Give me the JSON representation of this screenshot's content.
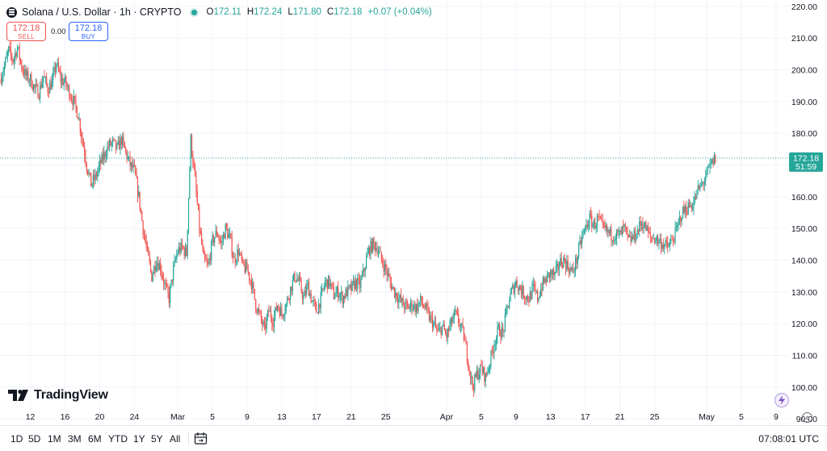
{
  "header": {
    "symbol_title": "Solana / U.S. Dollar · 1h · CRYPTO",
    "ohlc": [
      {
        "key": "O",
        "value": "172.11"
      },
      {
        "key": "H",
        "value": "172.24"
      },
      {
        "key": "L",
        "value": "171.80"
      },
      {
        "key": "C",
        "value": "172.18"
      }
    ],
    "change": "+0.07 (+0.04%)"
  },
  "trade": {
    "sell_price": "172.18",
    "sell_label": "SELL",
    "spread": "0.00",
    "buy_price": "172.18",
    "buy_label": "BUY"
  },
  "watermark": "TradingView",
  "last_price_label": {
    "price": "172.18",
    "countdown": "51:59"
  },
  "toolbar": {
    "ranges": [
      "1D",
      "5D",
      "1M",
      "3M",
      "6M",
      "YTD",
      "1Y",
      "5Y",
      "All"
    ],
    "time": "07:08:01 UTC"
  },
  "colors": {
    "up": "#26a69a",
    "down": "#ef5350",
    "text": "#131722",
    "grid": "#f0f3fa",
    "accent": "#2962ff"
  },
  "icons": [
    "solana-logo-icon",
    "market-open-dot-icon",
    "calendar-range-icon",
    "flash-icon",
    "settings-gear-icon",
    "tradingview-logo-icon"
  ],
  "chart_data": {
    "type": "line",
    "representation": "hourly candlestick series, SOL/USD",
    "y_ticks": [
      "220.00",
      "210.00",
      "200.00",
      "190.00",
      "180.00",
      "170.00",
      "160.00",
      "150.00",
      "140.00",
      "130.00",
      "120.00",
      "110.00",
      "100.00",
      "90.00"
    ],
    "ylim": [
      88,
      222
    ],
    "x_ticks": [
      "12",
      "16",
      "20",
      "24",
      "Mar",
      "5",
      "9",
      "13",
      "17",
      "21",
      "25",
      "Apr",
      "5",
      "9",
      "13",
      "17",
      "21",
      "25",
      "May",
      "5",
      "9"
    ],
    "x_tick_positions": [
      0,
      4,
      8,
      12,
      17,
      21,
      25,
      29,
      33,
      37,
      41,
      48,
      52,
      56,
      60,
      64,
      68,
      72,
      78,
      82,
      86
    ],
    "xlim": [
      -3.5,
      87.5
    ],
    "x_unit": "days after Feb 12",
    "price_path": [
      [
        -3.5,
        197
      ],
      [
        -3,
        201
      ],
      [
        -2.5,
        206
      ],
      [
        -2,
        203
      ],
      [
        -1.5,
        207
      ],
      [
        -1,
        201
      ],
      [
        -0.5,
        198
      ],
      [
        0,
        197
      ],
      [
        0.5,
        194
      ],
      [
        1,
        193
      ],
      [
        1.5,
        198
      ],
      [
        2,
        194
      ],
      [
        2.5,
        196
      ],
      [
        3,
        202
      ],
      [
        3.5,
        197
      ],
      [
        4,
        196
      ],
      [
        4.5,
        193
      ],
      [
        5,
        190
      ],
      [
        5.5,
        186
      ],
      [
        6,
        178
      ],
      [
        6.5,
        170
      ],
      [
        7,
        164
      ],
      [
        7.5,
        166
      ],
      [
        8,
        170
      ],
      [
        8.5,
        173
      ],
      [
        9,
        176
      ],
      [
        9.5,
        177
      ],
      [
        10,
        175
      ],
      [
        10.5,
        178
      ],
      [
        11,
        174
      ],
      [
        11.5,
        170
      ],
      [
        12,
        168
      ],
      [
        12.5,
        160
      ],
      [
        13,
        150
      ],
      [
        13.5,
        142
      ],
      [
        14,
        135
      ],
      [
        14.5,
        140
      ],
      [
        15,
        138
      ],
      [
        15.5,
        132
      ],
      [
        16,
        128
      ],
      [
        16.5,
        137
      ],
      [
        17,
        143
      ],
      [
        17.5,
        144
      ],
      [
        18,
        142
      ],
      [
        18.5,
        178
      ],
      [
        19,
        165
      ],
      [
        19.5,
        150
      ],
      [
        20,
        140
      ],
      [
        20.5,
        138
      ],
      [
        21,
        146
      ],
      [
        21.5,
        149
      ],
      [
        22,
        145
      ],
      [
        22.5,
        150
      ],
      [
        23,
        147
      ],
      [
        23.5,
        140
      ],
      [
        24,
        143
      ],
      [
        24.5,
        138
      ],
      [
        25,
        137
      ],
      [
        25.5,
        133
      ],
      [
        26,
        126
      ],
      [
        26.5,
        122
      ],
      [
        27,
        118
      ],
      [
        27.5,
        124
      ],
      [
        28,
        121
      ],
      [
        28.5,
        126
      ],
      [
        29,
        123
      ],
      [
        29.5,
        126
      ],
      [
        30,
        131
      ],
      [
        30.5,
        135
      ],
      [
        31,
        133
      ],
      [
        31.5,
        128
      ],
      [
        32,
        132
      ],
      [
        32.5,
        127
      ],
      [
        33,
        124
      ],
      [
        33.5,
        128
      ],
      [
        34,
        133
      ],
      [
        34.5,
        133
      ],
      [
        35,
        129
      ],
      [
        35.5,
        130
      ],
      [
        36,
        128
      ],
      [
        36.5,
        130
      ],
      [
        37,
        131
      ],
      [
        37.5,
        133
      ],
      [
        38,
        132
      ],
      [
        38.5,
        137
      ],
      [
        39,
        143
      ],
      [
        39.5,
        145
      ],
      [
        40,
        144
      ],
      [
        40.5,
        140
      ],
      [
        41,
        137
      ],
      [
        41.5,
        133
      ],
      [
        42,
        130
      ],
      [
        42.5,
        128
      ],
      [
        43,
        126
      ],
      [
        43.5,
        125
      ],
      [
        44,
        126
      ],
      [
        44.5,
        125
      ],
      [
        45,
        127
      ],
      [
        45.5,
        125
      ],
      [
        46,
        122
      ],
      [
        46.5,
        120
      ],
      [
        47,
        117
      ],
      [
        47.5,
        119
      ],
      [
        48,
        116
      ],
      [
        48.5,
        120
      ],
      [
        49,
        123
      ],
      [
        49.5,
        120
      ],
      [
        50,
        116
      ],
      [
        50.5,
        108
      ],
      [
        51,
        100
      ],
      [
        51.5,
        104
      ],
      [
        52,
        106
      ],
      [
        52.5,
        103
      ],
      [
        53,
        108
      ],
      [
        53.5,
        114
      ],
      [
        54,
        118
      ],
      [
        54.5,
        117
      ],
      [
        55,
        125
      ],
      [
        55.5,
        130
      ],
      [
        56,
        133
      ],
      [
        56.5,
        131
      ],
      [
        57,
        129
      ],
      [
        57.5,
        128
      ],
      [
        58,
        131
      ],
      [
        58.5,
        128
      ],
      [
        59,
        132
      ],
      [
        59.5,
        134
      ],
      [
        60,
        136
      ],
      [
        60.5,
        135
      ],
      [
        61,
        139
      ],
      [
        61.5,
        140
      ],
      [
        62,
        138
      ],
      [
        62.5,
        136
      ],
      [
        63,
        140
      ],
      [
        63.5,
        146
      ],
      [
        64,
        150
      ],
      [
        64.5,
        153
      ],
      [
        65,
        151
      ],
      [
        65.5,
        153
      ],
      [
        66,
        150
      ],
      [
        66.5,
        149
      ],
      [
        67,
        148
      ],
      [
        67.5,
        148
      ],
      [
        68,
        148
      ],
      [
        68.5,
        150
      ],
      [
        69,
        146
      ],
      [
        69.5,
        147
      ],
      [
        70,
        149
      ],
      [
        70.5,
        152
      ],
      [
        71,
        150
      ],
      [
        71.5,
        147
      ],
      [
        72,
        147
      ],
      [
        72.5,
        146
      ],
      [
        73,
        145
      ],
      [
        73.5,
        144
      ],
      [
        74,
        146
      ],
      [
        74.5,
        149
      ],
      [
        75,
        154
      ],
      [
        75.5,
        156
      ],
      [
        76,
        157
      ],
      [
        76.5,
        158
      ],
      [
        77,
        162
      ],
      [
        77.5,
        164
      ],
      [
        78,
        167
      ],
      [
        78.5,
        170
      ],
      [
        79,
        172.18
      ]
    ]
  }
}
